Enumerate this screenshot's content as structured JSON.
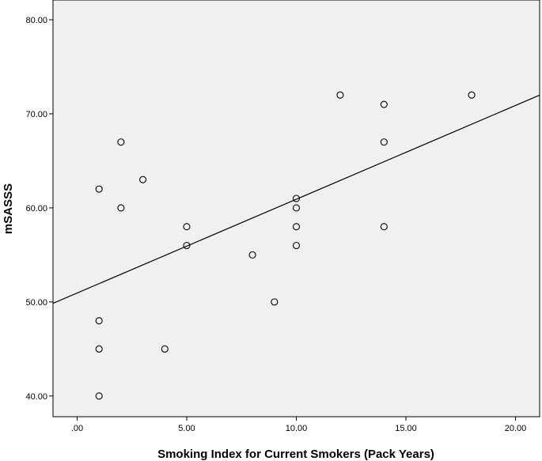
{
  "chart_data": {
    "type": "scatter",
    "xlabel": "Smoking Index for Current Smokers (Pack Years)",
    "ylabel": "mSASSS",
    "xlim": [
      -1.1,
      21.1
    ],
    "ylim": [
      37.8,
      82.1
    ],
    "x_ticks": [
      0,
      5,
      10,
      15,
      20
    ],
    "x_tick_labels": [
      ".00",
      "5.00",
      "10.00",
      "15.00",
      "20.00"
    ],
    "y_ticks": [
      40,
      50,
      60,
      70,
      80
    ],
    "y_tick_labels": [
      "40.00",
      "50.00",
      "60.00",
      "70.00",
      "80.00"
    ],
    "grid": false,
    "legend": "none",
    "colors": {
      "plot_background": "#f0f0f0",
      "marker": "#000000",
      "line": "#000000"
    },
    "points": [
      {
        "x": 1,
        "y": 62
      },
      {
        "x": 1,
        "y": 48
      },
      {
        "x": 1,
        "y": 45
      },
      {
        "x": 1,
        "y": 40
      },
      {
        "x": 2,
        "y": 67
      },
      {
        "x": 2,
        "y": 60
      },
      {
        "x": 3,
        "y": 63
      },
      {
        "x": 4,
        "y": 45
      },
      {
        "x": 5,
        "y": 58
      },
      {
        "x": 5,
        "y": 56
      },
      {
        "x": 8,
        "y": 55
      },
      {
        "x": 9,
        "y": 50
      },
      {
        "x": 10,
        "y": 61
      },
      {
        "x": 10,
        "y": 60
      },
      {
        "x": 10,
        "y": 58
      },
      {
        "x": 10,
        "y": 56
      },
      {
        "x": 12,
        "y": 72
      },
      {
        "x": 14,
        "y": 71
      },
      {
        "x": 14,
        "y": 67
      },
      {
        "x": 14,
        "y": 58
      },
      {
        "x": 18,
        "y": 72
      }
    ],
    "fit_line": {
      "intercept": 50.95,
      "slope": 0.997
    }
  }
}
